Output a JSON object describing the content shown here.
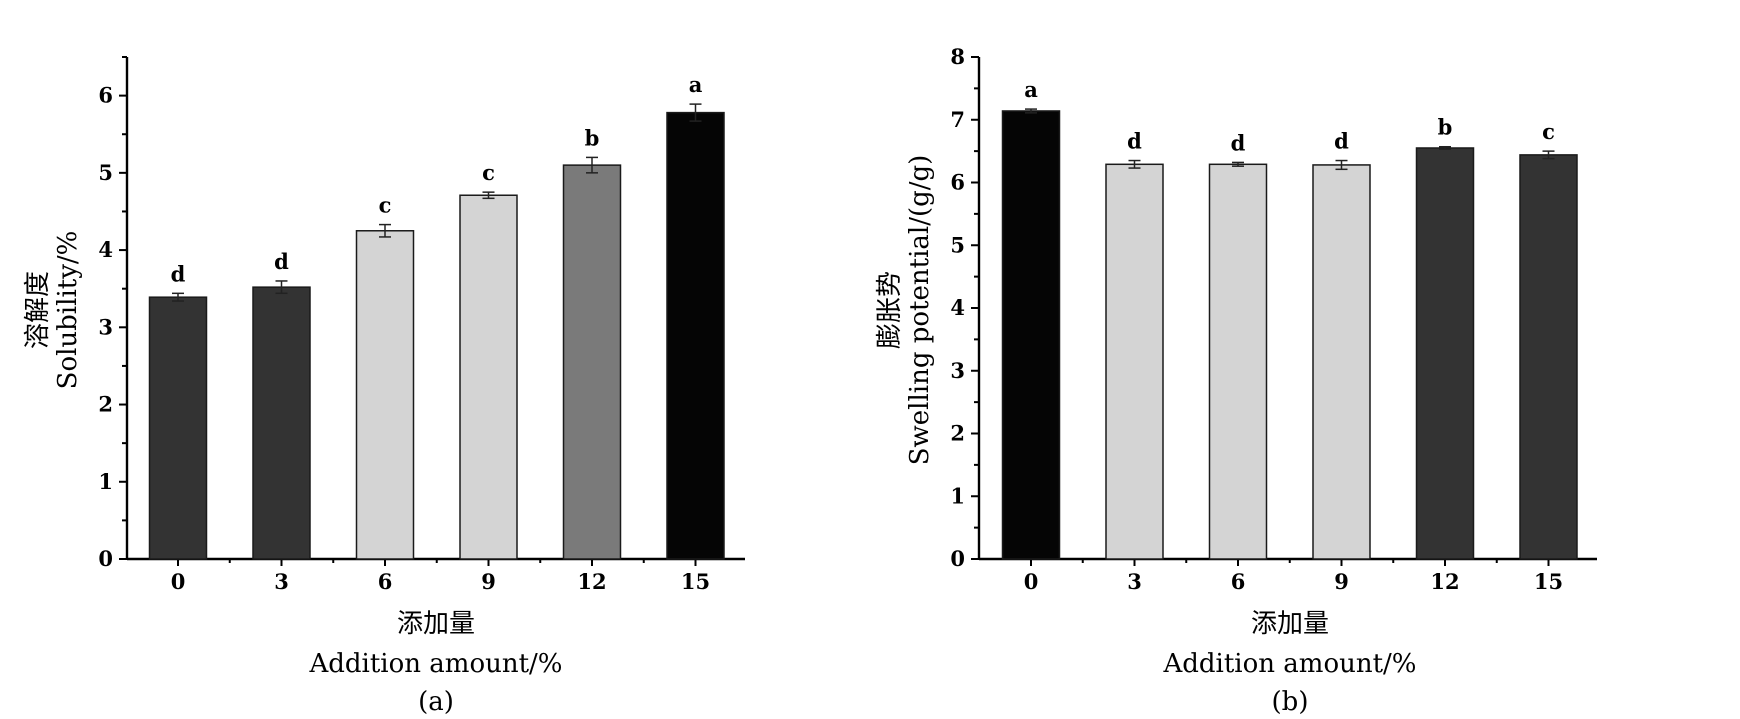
{
  "chart_data": [
    {
      "type": "bar",
      "panel_label": "(a)",
      "ylabel_cn": "溶解度",
      "ylabel_en": "Solubility/%",
      "xlabel_cn": "添加量",
      "xlabel_en": "Addition amount/%",
      "categories": [
        "0",
        "3",
        "6",
        "9",
        "12",
        "15"
      ],
      "values": [
        3.39,
        3.52,
        4.25,
        4.71,
        5.1,
        5.78
      ],
      "errors": [
        0.05,
        0.08,
        0.08,
        0.04,
        0.1,
        0.11
      ],
      "significance": [
        "d",
        "d",
        "c",
        "c",
        "b",
        "a"
      ],
      "bar_colors": [
        "#333333",
        "#333333",
        "#d4d4d4",
        "#d4d4d4",
        "#7a7a7a",
        "#050505"
      ],
      "ylim": [
        0,
        6.5
      ],
      "yticks": [
        "0",
        "1",
        "2",
        "3",
        "4",
        "5",
        "6"
      ],
      "ytick_values": [
        0,
        1,
        2,
        3,
        4,
        5,
        6
      ],
      "grid": false
    },
    {
      "type": "bar",
      "panel_label": "(b)",
      "ylabel_cn": "膨胀势",
      "ylabel_en": "Swelling potential/(g/g)",
      "xlabel_cn": "添加量",
      "xlabel_en": "Addition amount/%",
      "categories": [
        "0",
        "3",
        "6",
        "9",
        "12",
        "15"
      ],
      "values": [
        7.14,
        6.29,
        6.29,
        6.28,
        6.55,
        6.44
      ],
      "errors": [
        0.03,
        0.06,
        0.03,
        0.07,
        0.02,
        0.06
      ],
      "significance": [
        "a",
        "d",
        "d",
        "d",
        "b",
        "c"
      ],
      "bar_colors": [
        "#050505",
        "#d4d4d4",
        "#d4d4d4",
        "#d4d4d4",
        "#333333",
        "#333333"
      ],
      "ylim": [
        0,
        8
      ],
      "yticks": [
        "0",
        "1",
        "2",
        "3",
        "4",
        "5",
        "6",
        "7",
        "8"
      ],
      "ytick_values": [
        0,
        1,
        2,
        3,
        4,
        5,
        6,
        7,
        8
      ],
      "grid": false
    }
  ]
}
